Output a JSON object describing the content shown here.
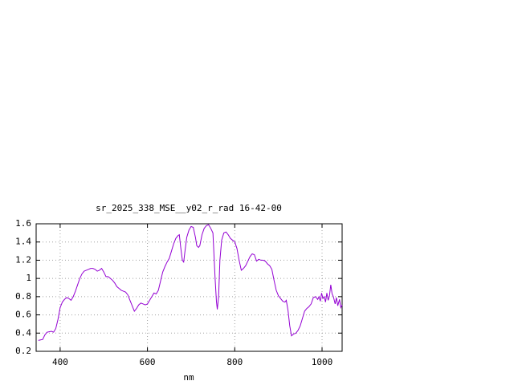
{
  "chart_data": {
    "type": "line",
    "title": "sr_2025_338_MSE__y02_r_rad 16-42-00",
    "x_label": "nm",
    "xlim": [
      345,
      1046
    ],
    "xticks": [
      400,
      600,
      800,
      1000
    ],
    "ylim": [
      0.2,
      1.6
    ],
    "yticks": [
      0.2,
      0.4,
      0.6,
      0.8,
      1,
      1.2,
      1.4,
      1.6
    ],
    "grid": true,
    "x": [
      350,
      360,
      365,
      370,
      380,
      385,
      390,
      395,
      400,
      405,
      410,
      415,
      420,
      425,
      430,
      435,
      440,
      445,
      450,
      455,
      460,
      465,
      470,
      475,
      480,
      485,
      490,
      495,
      500,
      505,
      510,
      515,
      520,
      525,
      530,
      535,
      540,
      545,
      550,
      555,
      560,
      565,
      570,
      575,
      580,
      585,
      590,
      595,
      600,
      605,
      610,
      615,
      620,
      625,
      630,
      635,
      640,
      645,
      650,
      655,
      660,
      665,
      670,
      673,
      676,
      680,
      683,
      686,
      690,
      695,
      700,
      705,
      710,
      713,
      717,
      720,
      725,
      730,
      735,
      740,
      745,
      750,
      755,
      758,
      760,
      763,
      766,
      770,
      775,
      780,
      785,
      790,
      795,
      800,
      805,
      810,
      815,
      820,
      825,
      830,
      835,
      840,
      845,
      850,
      855,
      860,
      865,
      870,
      875,
      880,
      885,
      890,
      895,
      900,
      905,
      910,
      915,
      918,
      922,
      926,
      930,
      935,
      940,
      945,
      950,
      955,
      960,
      965,
      970,
      975,
      980,
      985,
      990,
      993,
      996,
      999,
      1002,
      1005,
      1008,
      1011,
      1014,
      1017,
      1020,
      1023,
      1026,
      1030,
      1033,
      1036,
      1040,
      1043,
      1046
    ],
    "series": [
      {
        "color": "#9400d3",
        "values": [
          0.32,
          0.33,
          0.38,
          0.41,
          0.42,
          0.41,
          0.45,
          0.55,
          0.68,
          0.74,
          0.77,
          0.79,
          0.78,
          0.76,
          0.8,
          0.86,
          0.93,
          1.0,
          1.05,
          1.08,
          1.09,
          1.1,
          1.11,
          1.11,
          1.1,
          1.08,
          1.09,
          1.11,
          1.07,
          1.02,
          1.02,
          1.0,
          0.98,
          0.95,
          0.91,
          0.89,
          0.87,
          0.86,
          0.85,
          0.82,
          0.76,
          0.7,
          0.64,
          0.67,
          0.71,
          0.73,
          0.72,
          0.71,
          0.72,
          0.76,
          0.8,
          0.84,
          0.83,
          0.87,
          0.97,
          1.07,
          1.13,
          1.18,
          1.22,
          1.3,
          1.38,
          1.44,
          1.47,
          1.48,
          1.35,
          1.2,
          1.18,
          1.3,
          1.45,
          1.53,
          1.57,
          1.56,
          1.45,
          1.36,
          1.34,
          1.36,
          1.48,
          1.55,
          1.58,
          1.59,
          1.55,
          1.5,
          1.0,
          0.75,
          0.66,
          0.8,
          1.2,
          1.42,
          1.5,
          1.51,
          1.48,
          1.44,
          1.42,
          1.4,
          1.33,
          1.2,
          1.09,
          1.11,
          1.14,
          1.19,
          1.24,
          1.27,
          1.26,
          1.19,
          1.21,
          1.2,
          1.2,
          1.19,
          1.16,
          1.14,
          1.1,
          0.98,
          0.87,
          0.81,
          0.78,
          0.75,
          0.74,
          0.76,
          0.65,
          0.48,
          0.37,
          0.39,
          0.4,
          0.43,
          0.48,
          0.56,
          0.64,
          0.67,
          0.69,
          0.72,
          0.79,
          0.8,
          0.77,
          0.8,
          0.75,
          0.84,
          0.78,
          0.8,
          0.74,
          0.84,
          0.76,
          0.81,
          0.93,
          0.83,
          0.8,
          0.72,
          0.79,
          0.7,
          0.77,
          0.68,
          0.71
        ]
      }
    ]
  }
}
